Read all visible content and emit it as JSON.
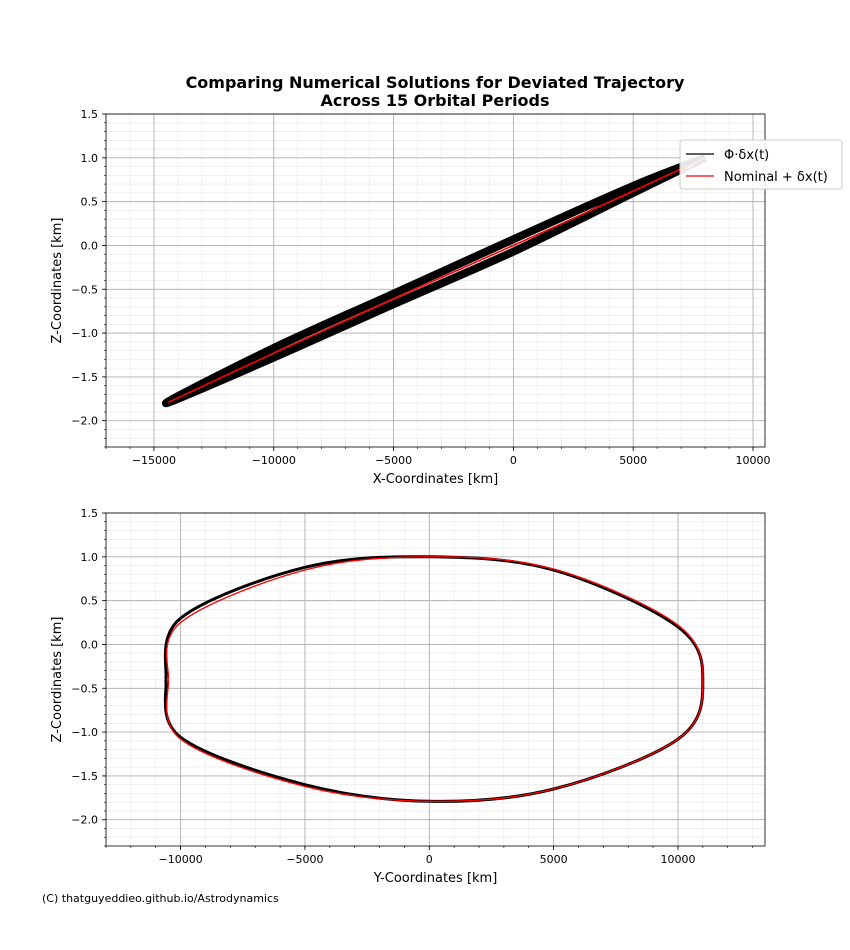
{
  "figure": {
    "title_line1": "Comparing Numerical Solutions for Deviated Trajectory",
    "title_line2": "Across 15 Orbital Periods",
    "credit": "(C) thatguyeddieo.github.io/Astrodynamics"
  },
  "chart_data": [
    {
      "type": "line",
      "xlabel": "X-Coordinates [km]",
      "ylabel": "Z-Coordinates [km]",
      "xlim": [
        -17000,
        10500
      ],
      "ylim": [
        -2.3,
        1.5
      ],
      "xticks": [
        -15000,
        -10000,
        -5000,
        0,
        5000,
        10000
      ],
      "xtick_labels": [
        "−15000",
        "−10000",
        "−5000",
        "0",
        "5000",
        "10000"
      ],
      "yticks": [
        1.5,
        1.0,
        0.5,
        0.0,
        -0.5,
        -1.0,
        -1.5,
        -2.0
      ],
      "ytick_labels": [
        "1.5",
        "1.0",
        "0.5",
        "0.0",
        "−0.5",
        "−1.0",
        "−1.5",
        "−2.0"
      ],
      "grid": true,
      "legend": {
        "placement": "upper-right",
        "entries": [
          {
            "label": "Φ·δx(t)",
            "color": "#000000"
          },
          {
            "label": "Nominal + δx(t)",
            "color": "#ff0000"
          }
        ]
      },
      "series": [
        {
          "name": "Φ·δx(t)",
          "color": "#000000",
          "x": [
            8000,
            5000,
            0,
            -5000,
            -10000,
            -14500,
            -10000,
            -5000,
            0,
            5000,
            8000
          ],
          "y": [
            1.0,
            0.68,
            0.07,
            -0.55,
            -1.17,
            -1.8,
            -1.28,
            -0.67,
            -0.07,
            0.6,
            1.0
          ]
        },
        {
          "name": "Nominal + δx(t)",
          "color": "#ff0000",
          "x": [
            -14400,
            -10000,
            -5000,
            0,
            5000,
            8000
          ],
          "y": [
            -1.79,
            -1.23,
            -0.61,
            0.0,
            0.62,
            1.0
          ]
        }
      ]
    },
    {
      "type": "line",
      "xlabel": "Y-Coordinates [km]",
      "ylabel": "Z-Coordinates [km]",
      "xlim": [
        -13000,
        13500
      ],
      "ylim": [
        -2.3,
        1.5
      ],
      "xticks": [
        -10000,
        -5000,
        0,
        5000,
        10000
      ],
      "xtick_labels": [
        "−10000",
        "−5000",
        "0",
        "5000",
        "10000"
      ],
      "yticks": [
        1.5,
        1.0,
        0.5,
        0.0,
        -0.5,
        -1.0,
        -1.5,
        -2.0
      ],
      "ytick_labels": [
        "1.5",
        "1.0",
        "0.5",
        "0.0",
        "−0.5",
        "−1.0",
        "−1.5",
        "−2.0"
      ],
      "grid": true,
      "series": [
        {
          "name": "Φ·δx(t)",
          "color": "#000000",
          "x": [
            -10600,
            -10000,
            -5000,
            0,
            5000,
            10000,
            11000,
            10000,
            5000,
            0,
            -5000,
            -10000,
            -10600
          ],
          "y": [
            -0.4,
            0.3,
            0.88,
            1.0,
            0.85,
            0.2,
            -0.43,
            -1.08,
            -1.65,
            -1.79,
            -1.6,
            -1.06,
            -0.4
          ]
        },
        {
          "name": "Nominal + δx(t)",
          "color": "#ff0000",
          "x": [
            -10500,
            -10000,
            -5000,
            0,
            5000,
            10000,
            11000,
            10000,
            5000,
            0,
            -5000,
            -10000,
            -10500
          ],
          "y": [
            -0.4,
            0.25,
            0.85,
            1.0,
            0.86,
            0.22,
            -0.43,
            -1.08,
            -1.65,
            -1.79,
            -1.62,
            -1.08,
            -0.4
          ]
        }
      ]
    }
  ]
}
